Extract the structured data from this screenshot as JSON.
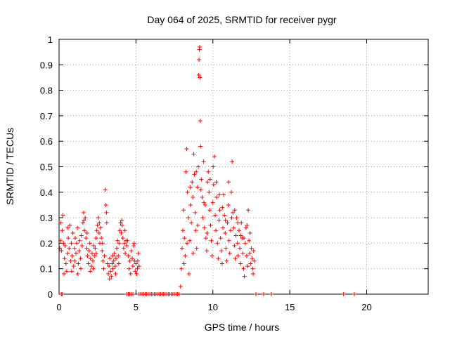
{
  "chart_data": {
    "type": "scatter",
    "title": "Day 064 of 2025, SRMTID for receiver pygr",
    "xlabel": "GPS time / hours",
    "ylabel": "SRMTID / TECUs",
    "xlim": [
      0,
      24
    ],
    "ylim": [
      0,
      1
    ],
    "xticks": [
      0,
      5,
      10,
      15,
      20
    ],
    "yticks": [
      0,
      0.1,
      0.2,
      0.3,
      0.4,
      0.5,
      0.6,
      0.7,
      0.8,
      0.9,
      1
    ],
    "xtick_labels": [
      "0",
      "5",
      "10",
      "15",
      "20"
    ],
    "ytick_labels": [
      "0",
      "0.1",
      "0.2",
      "0.3",
      "0.4",
      "0.5",
      "0.6",
      "0.7",
      "0.8",
      "0.9",
      "1"
    ],
    "grid": true,
    "marker": "+",
    "color": "#ff0000",
    "series": [
      {
        "name": "SRMTID",
        "points": [
          [
            0.05,
            0.18
          ],
          [
            0.1,
            0.21
          ],
          [
            0.15,
            0.17
          ],
          [
            0.2,
            0.25
          ],
          [
            0.25,
            0.31
          ],
          [
            0.3,
            0.2
          ],
          [
            0.35,
            0.14
          ],
          [
            0.4,
            0.19
          ],
          [
            0.45,
            0.12
          ],
          [
            0.5,
            0.09
          ],
          [
            0.55,
            0.16
          ],
          [
            0.6,
            0.22
          ],
          [
            0.65,
            0.18
          ],
          [
            0.7,
            0.27
          ],
          [
            0.75,
            0.13
          ],
          [
            0.8,
            0.2
          ],
          [
            0.85,
            0.15
          ],
          [
            0.9,
            0.24
          ],
          [
            0.95,
            0.11
          ],
          [
            1.0,
            0.18
          ],
          [
            1.05,
            0.22
          ],
          [
            1.1,
            0.16
          ],
          [
            1.15,
            0.2
          ],
          [
            1.2,
            0.26
          ],
          [
            1.25,
            0.12
          ],
          [
            1.3,
            0.17
          ],
          [
            1.35,
            0.21
          ],
          [
            1.4,
            0.14
          ],
          [
            1.45,
            0.23
          ],
          [
            1.5,
            0.19
          ],
          [
            1.55,
            0.28
          ],
          [
            1.6,
            0.32
          ],
          [
            1.65,
            0.25
          ],
          [
            1.7,
            0.3
          ],
          [
            1.75,
            0.22
          ],
          [
            1.8,
            0.18
          ],
          [
            1.85,
            0.15
          ],
          [
            1.9,
            0.12
          ],
          [
            1.95,
            0.17
          ],
          [
            2.0,
            0.2
          ],
          [
            2.05,
            0.14
          ],
          [
            2.1,
            0.11
          ],
          [
            2.15,
            0.16
          ],
          [
            2.2,
            0.13
          ],
          [
            2.25,
            0.19
          ],
          [
            2.3,
            0.15
          ],
          [
            2.35,
            0.18
          ],
          [
            2.4,
            0.22
          ],
          [
            2.45,
            0.25
          ],
          [
            2.5,
            0.27
          ],
          [
            2.55,
            0.3
          ],
          [
            2.6,
            0.24
          ],
          [
            2.65,
            0.2
          ],
          [
            2.7,
            0.26
          ],
          [
            2.75,
            0.22
          ],
          [
            2.8,
            0.17
          ],
          [
            2.85,
            0.13
          ],
          [
            2.9,
            0.1
          ],
          [
            2.95,
            0.15
          ],
          [
            3.0,
            0.41
          ],
          [
            3.05,
            0.35
          ],
          [
            3.1,
            0.28
          ],
          [
            3.15,
            0.12
          ],
          [
            3.2,
            0.08
          ],
          [
            3.25,
            0.11
          ],
          [
            3.3,
            0.14
          ],
          [
            3.35,
            0.09
          ],
          [
            3.4,
            0.07
          ],
          [
            3.45,
            0.12
          ],
          [
            3.5,
            0.1
          ],
          [
            3.55,
            0.13
          ],
          [
            3.6,
            0.16
          ],
          [
            3.65,
            0.11
          ],
          [
            3.7,
            0.14
          ],
          [
            3.75,
            0.18
          ],
          [
            3.8,
            0.21
          ],
          [
            3.85,
            0.15
          ],
          [
            3.9,
            0.2
          ],
          [
            3.95,
            0.25
          ],
          [
            4.0,
            0.28
          ],
          [
            4.05,
            0.24
          ],
          [
            4.1,
            0.27
          ],
          [
            4.15,
            0.22
          ],
          [
            4.2,
            0.18
          ],
          [
            4.25,
            0.2
          ],
          [
            4.3,
            0.16
          ],
          [
            4.35,
            0.21
          ],
          [
            4.4,
            0.19
          ],
          [
            4.5,
            0.15
          ],
          [
            4.55,
            0.1
          ],
          [
            4.6,
            0.13
          ],
          [
            4.7,
            0.17
          ],
          [
            4.75,
            0.14
          ],
          [
            4.8,
            0.11
          ],
          [
            4.85,
            0.19
          ],
          [
            4.9,
            0.13
          ],
          [
            4.95,
            0.09
          ],
          [
            5.0,
            0.12
          ],
          [
            5.05,
            0.08
          ],
          [
            5.1,
            0.1
          ],
          [
            5.15,
            0.16
          ],
          [
            5.2,
            0.11
          ],
          [
            0.12,
            0.28
          ],
          [
            0.32,
            0.08
          ],
          [
            0.58,
            0.26
          ],
          [
            0.82,
            0.09
          ],
          [
            1.02,
            0.13
          ],
          [
            1.22,
            0.08
          ],
          [
            1.42,
            0.1
          ],
          [
            1.62,
            0.29
          ],
          [
            1.82,
            0.24
          ],
          [
            2.02,
            0.09
          ],
          [
            2.22,
            0.1
          ],
          [
            2.42,
            0.16
          ],
          [
            2.62,
            0.28
          ],
          [
            2.82,
            0.2
          ],
          [
            3.08,
            0.32
          ],
          [
            3.28,
            0.06
          ],
          [
            3.48,
            0.15
          ],
          [
            3.68,
            0.08
          ],
          [
            3.88,
            0.12
          ],
          [
            4.08,
            0.29
          ],
          [
            4.28,
            0.25
          ],
          [
            4.45,
            0.21
          ],
          [
            4.65,
            0.08
          ],
          [
            4.88,
            0.2
          ],
          [
            5.12,
            0.13
          ],
          [
            7.9,
            0.03
          ],
          [
            7.95,
            0.1
          ],
          [
            8.0,
            0.18
          ],
          [
            8.05,
            0.25
          ],
          [
            8.1,
            0.33
          ],
          [
            8.15,
            0.22
          ],
          [
            8.2,
            0.15
          ],
          [
            8.25,
            0.48
          ],
          [
            8.3,
            0.57
          ],
          [
            8.35,
            0.4
          ],
          [
            8.4,
            0.3
          ],
          [
            8.45,
            0.08
          ],
          [
            8.5,
            0.21
          ],
          [
            8.55,
            0.35
          ],
          [
            8.6,
            0.28
          ],
          [
            8.65,
            0.44
          ],
          [
            8.7,
            0.38
          ],
          [
            8.75,
            0.55
          ],
          [
            8.8,
            0.47
          ],
          [
            8.85,
            0.32
          ],
          [
            8.9,
            0.25
          ],
          [
            8.95,
            0.18
          ],
          [
            9.0,
            0.42
          ],
          [
            9.05,
            0.5
          ],
          [
            9.08,
            0.86
          ],
          [
            9.1,
            0.92
          ],
          [
            9.12,
            0.96
          ],
          [
            9.14,
            0.97
          ],
          [
            9.16,
            0.85
          ],
          [
            9.18,
            0.68
          ],
          [
            9.2,
            0.58
          ],
          [
            9.25,
            0.45
          ],
          [
            9.3,
            0.38
          ],
          [
            9.35,
            0.3
          ],
          [
            9.4,
            0.52
          ],
          [
            9.45,
            0.26
          ],
          [
            9.5,
            0.35
          ],
          [
            9.55,
            0.22
          ],
          [
            9.6,
            0.17
          ],
          [
            9.65,
            0.44
          ],
          [
            9.7,
            0.48
          ],
          [
            9.75,
            0.4
          ],
          [
            9.8,
            0.33
          ],
          [
            9.85,
            0.27
          ],
          [
            9.9,
            0.21
          ],
          [
            9.95,
            0.15
          ],
          [
            10.0,
            0.36
          ],
          [
            10.05,
            0.43
          ],
          [
            10.1,
            0.54
          ],
          [
            10.15,
            0.31
          ],
          [
            10.2,
            0.25
          ],
          [
            10.25,
            0.38
          ],
          [
            10.3,
            0.2
          ],
          [
            10.35,
            0.14
          ],
          [
            10.4,
            0.29
          ],
          [
            10.45,
            0.33
          ],
          [
            10.5,
            0.22
          ],
          [
            10.55,
            0.17
          ],
          [
            10.6,
            0.12
          ],
          [
            10.65,
            0.26
          ],
          [
            10.7,
            0.39
          ],
          [
            10.75,
            0.31
          ],
          [
            10.8,
            0.24
          ],
          [
            10.85,
            0.18
          ],
          [
            10.9,
            0.13
          ],
          [
            10.95,
            0.28
          ],
          [
            11.0,
            0.35
          ],
          [
            11.05,
            0.21
          ],
          [
            11.1,
            0.16
          ],
          [
            11.15,
            0.25
          ],
          [
            11.2,
            0.4
          ],
          [
            11.25,
            0.52
          ],
          [
            11.3,
            0.32
          ],
          [
            11.35,
            0.26
          ],
          [
            11.4,
            0.19
          ],
          [
            11.45,
            0.14
          ],
          [
            11.5,
            0.23
          ],
          [
            11.55,
            0.3
          ],
          [
            11.6,
            0.2
          ],
          [
            11.65,
            0.15
          ],
          [
            11.7,
            0.25
          ],
          [
            11.75,
            0.18
          ],
          [
            11.8,
            0.12
          ],
          [
            11.85,
            0.28
          ],
          [
            11.9,
            0.22
          ],
          [
            11.95,
            0.16
          ],
          [
            12.0,
            0.1
          ],
          [
            12.05,
            0.07
          ],
          [
            12.1,
            0.2
          ],
          [
            12.15,
            0.26
          ],
          [
            12.2,
            0.15
          ],
          [
            12.25,
            0.11
          ],
          [
            12.3,
            0.33
          ],
          [
            12.35,
            0.21
          ],
          [
            12.4,
            0.16
          ],
          [
            12.45,
            0.12
          ],
          [
            12.5,
            0.18
          ],
          [
            12.55,
            0.14
          ],
          [
            12.6,
            0.1
          ],
          [
            12.65,
            0.17
          ],
          [
            12.7,
            0.13
          ],
          [
            8.12,
            0.12
          ],
          [
            8.32,
            0.2
          ],
          [
            8.52,
            0.42
          ],
          [
            8.72,
            0.16
          ],
          [
            8.92,
            0.48
          ],
          [
            9.02,
            0.27
          ],
          [
            9.22,
            0.41
          ],
          [
            9.42,
            0.36
          ],
          [
            9.62,
            0.24
          ],
          [
            9.82,
            0.45
          ],
          [
            10.02,
            0.5
          ],
          [
            10.22,
            0.44
          ],
          [
            10.42,
            0.39
          ],
          [
            10.62,
            0.34
          ],
          [
            10.82,
            0.29
          ],
          [
            11.02,
            0.44
          ],
          [
            11.22,
            0.3
          ],
          [
            11.42,
            0.33
          ],
          [
            11.62,
            0.28
          ],
          [
            11.82,
            0.23
          ],
          [
            12.02,
            0.22
          ],
          [
            12.22,
            0.27
          ],
          [
            12.42,
            0.24
          ],
          [
            12.62,
            0.08
          ],
          [
            0.15,
            0
          ],
          [
            0.2,
            0
          ],
          [
            4.4,
            0
          ],
          [
            4.5,
            0
          ],
          [
            4.6,
            0
          ],
          [
            4.7,
            0
          ],
          [
            4.8,
            0
          ],
          [
            5.2,
            0
          ],
          [
            5.3,
            0
          ],
          [
            5.4,
            0
          ],
          [
            5.5,
            0
          ],
          [
            5.6,
            0
          ],
          [
            5.7,
            0
          ],
          [
            5.8,
            0
          ],
          [
            5.9,
            0
          ],
          [
            6.0,
            0
          ],
          [
            6.1,
            0
          ],
          [
            6.2,
            0
          ],
          [
            6.3,
            0
          ],
          [
            6.4,
            0
          ],
          [
            6.5,
            0
          ],
          [
            6.6,
            0
          ],
          [
            6.7,
            0
          ],
          [
            6.8,
            0
          ],
          [
            6.9,
            0
          ],
          [
            7.0,
            0
          ],
          [
            7.1,
            0
          ],
          [
            7.2,
            0
          ],
          [
            7.3,
            0
          ],
          [
            7.4,
            0
          ],
          [
            7.5,
            0
          ],
          [
            7.6,
            0
          ],
          [
            7.7,
            0
          ],
          [
            7.8,
            0
          ],
          [
            12.8,
            0
          ],
          [
            13.3,
            0
          ],
          [
            13.8,
            0
          ],
          [
            18.5,
            0
          ],
          [
            19.2,
            0
          ]
        ]
      }
    ]
  }
}
